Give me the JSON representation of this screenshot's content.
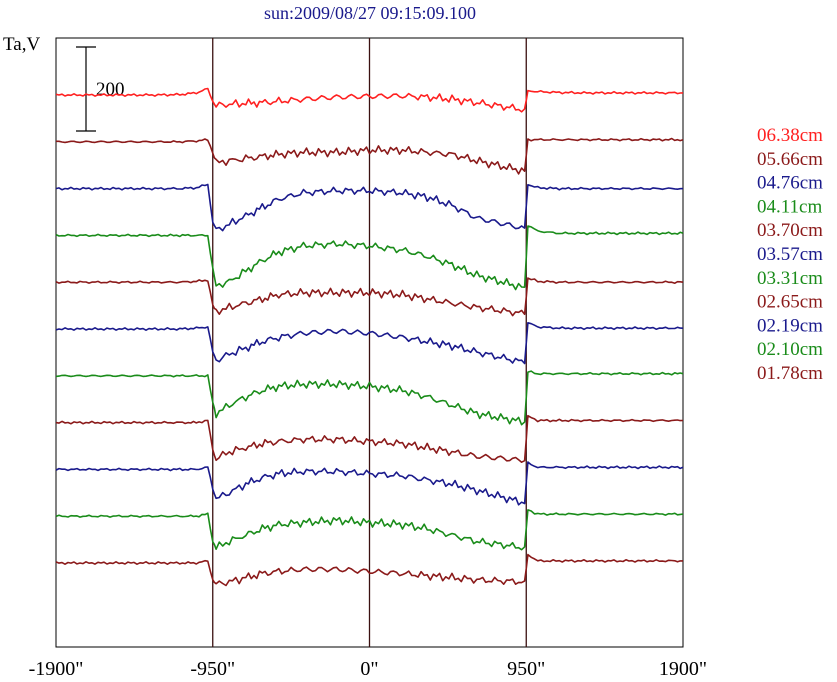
{
  "chart_data": {
    "type": "line",
    "title": "sun:2009/08/27 09:15:09.100",
    "ylabel": "Ta,V",
    "scale_bar_label": "200",
    "scale_bar_value": 200,
    "xlim": [
      -1900,
      1900
    ],
    "x_ticks": [
      -1900,
      -950,
      0,
      950,
      1900
    ],
    "x_tick_labels": [
      "-1900\"",
      "-950\"",
      "0\"",
      "950\"",
      "1900\""
    ],
    "vertical_markers": [
      -950,
      0,
      950
    ],
    "y_offset_step": 210,
    "grid": false,
    "legend_position": "right",
    "series": [
      {
        "name": "06.38cm",
        "color": "#ff2020",
        "values": [
          0,
          0,
          0,
          0,
          1,
          5,
          15,
          -15,
          -25,
          -22,
          -20,
          -18,
          -15,
          -10,
          -5,
          -3,
          -2,
          -5,
          -10,
          -18,
          -35,
          10,
          8,
          6,
          5,
          5,
          5,
          5,
          5
        ]
      },
      {
        "name": "05.66cm",
        "color": "#8b1a1a",
        "values": [
          0,
          0,
          0,
          0,
          0,
          2,
          5,
          -25,
          -50,
          -45,
          -40,
          -35,
          -30,
          -25,
          -25,
          -20,
          -20,
          -25,
          -30,
          -45,
          -70,
          5,
          5,
          5,
          5,
          5,
          5,
          5,
          5
        ]
      },
      {
        "name": "04.76cm",
        "color": "#1a1a8c",
        "values": [
          0,
          0,
          0,
          0,
          0,
          2,
          10,
          -80,
          -100,
          -85,
          -65,
          -45,
          -25,
          -10,
          -5,
          -5,
          -10,
          -20,
          -40,
          -70,
          -95,
          10,
          2,
          0,
          0,
          0,
          0,
          0,
          0
        ]
      },
      {
        "name": "04.11cm",
        "color": "#1a8c1a",
        "values": [
          0,
          0,
          0,
          0,
          0,
          0,
          0,
          -80,
          -120,
          -110,
          -85,
          -60,
          -40,
          -25,
          -20,
          -25,
          -35,
          -50,
          -70,
          -95,
          -125,
          25,
          10,
          5,
          5,
          5,
          5,
          5,
          5
        ]
      },
      {
        "name": "03.70cm",
        "color": "#8b1a1a",
        "values": [
          0,
          0,
          0,
          0,
          0,
          2,
          5,
          -55,
          -70,
          -60,
          -50,
          -40,
          -30,
          -25,
          -25,
          -25,
          -30,
          -40,
          -50,
          -60,
          -75,
          10,
          2,
          0,
          0,
          0,
          0,
          0,
          0
        ]
      },
      {
        "name": "03.57cm",
        "color": "#1a1a8c",
        "values": [
          0,
          0,
          0,
          0,
          0,
          2,
          5,
          -55,
          -75,
          -60,
          -45,
          -30,
          -20,
          -10,
          -5,
          -10,
          -20,
          -30,
          -40,
          -55,
          -80,
          15,
          5,
          2,
          2,
          2,
          2,
          2,
          2
        ]
      },
      {
        "name": "03.31cm",
        "color": "#1a8c1a",
        "values": [
          0,
          0,
          0,
          0,
          0,
          0,
          0,
          -65,
          -90,
          -70,
          -50,
          -35,
          -25,
          -20,
          -20,
          -25,
          -35,
          -50,
          -70,
          -90,
          -110,
          10,
          5,
          5,
          5,
          5,
          5,
          5,
          5
        ]
      },
      {
        "name": "02.65cm",
        "color": "#8b1a1a",
        "values": [
          0,
          0,
          0,
          0,
          0,
          0,
          5,
          -65,
          -85,
          -70,
          -60,
          -50,
          -45,
          -40,
          -40,
          -45,
          -50,
          -60,
          -70,
          -80,
          -90,
          15,
          5,
          5,
          5,
          5,
          5,
          5,
          5
        ]
      },
      {
        "name": "02.19cm",
        "color": "#1a1a8c",
        "values": [
          0,
          0,
          0,
          0,
          0,
          0,
          5,
          -45,
          -70,
          -55,
          -35,
          -20,
          -10,
          -5,
          -5,
          -10,
          -15,
          -25,
          -35,
          -50,
          -80,
          15,
          5,
          5,
          5,
          5,
          5,
          5,
          5
        ]
      },
      {
        "name": "02.10cm",
        "color": "#1a8c1a",
        "values": [
          0,
          0,
          0,
          0,
          0,
          0,
          5,
          -60,
          -75,
          -60,
          -45,
          -30,
          -20,
          -15,
          -10,
          -15,
          -20,
          -30,
          -45,
          -60,
          -75,
          15,
          5,
          5,
          5,
          5,
          5,
          5,
          5
        ]
      },
      {
        "name": "01.78cm",
        "color": "#8b1a1a",
        "values": [
          0,
          0,
          0,
          0,
          0,
          0,
          5,
          -40,
          -50,
          -45,
          -35,
          -25,
          -20,
          -15,
          -15,
          -20,
          -25,
          -30,
          -35,
          -40,
          -45,
          20,
          5,
          5,
          5,
          5,
          5,
          5,
          5
        ]
      }
    ],
    "x": [
      -1900,
      -1700,
      -1500,
      -1300,
      -1150,
      -1050,
      -980,
      -950,
      -930,
      -850,
      -750,
      -650,
      -550,
      -400,
      -200,
      0,
      200,
      350,
      500,
      650,
      940,
      960,
      1020,
      1150,
      1300,
      1500,
      1700,
      1850,
      1900
    ]
  }
}
